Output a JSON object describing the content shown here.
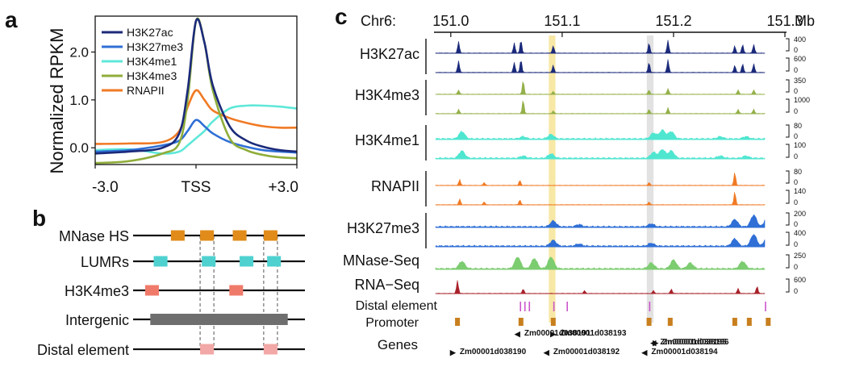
{
  "panels": {
    "a": {
      "label": "a",
      "chart_data": {
        "type": "line",
        "title": "",
        "xlabel": "",
        "ylabel": "Normalized RPKM",
        "x_tick_labels": [
          "-3.0",
          "TSS",
          "+3.0"
        ],
        "y_tick_labels": [
          "0.0",
          "1.0",
          "2.0"
        ],
        "xlim": [
          -3,
          3
        ],
        "ylim": [
          -0.35,
          2.75
        ],
        "x": [
          -3.0,
          -2.0,
          -1.0,
          -0.5,
          -0.25,
          0.0,
          0.25,
          0.5,
          1.0,
          1.5,
          2.0,
          2.5,
          3.0
        ],
        "series": [
          {
            "name": "H3K27ac",
            "color": "#1b2a7a",
            "values": [
              -0.12,
              -0.08,
              0.0,
              0.3,
              1.2,
              2.65,
              2.2,
              1.3,
              0.45,
              0.15,
              0.02,
              -0.05,
              -0.08
            ]
          },
          {
            "name": "H3K27me3",
            "color": "#2f6fd6",
            "values": [
              -0.08,
              -0.05,
              0.05,
              0.15,
              0.35,
              0.58,
              0.45,
              0.3,
              0.12,
              0.02,
              -0.05,
              -0.08,
              -0.1
            ]
          },
          {
            "name": "H3K4me1",
            "color": "#5fe8d8",
            "values": [
              -0.05,
              -0.03,
              -0.12,
              -0.08,
              0.05,
              0.2,
              0.35,
              0.55,
              0.82,
              0.88,
              0.88,
              0.86,
              0.82
            ]
          },
          {
            "name": "H3K4me3",
            "color": "#8fad3a",
            "values": [
              -0.32,
              -0.28,
              -0.12,
              0.1,
              1.0,
              2.65,
              2.2,
              1.2,
              0.2,
              -0.05,
              -0.15,
              -0.2,
              -0.22
            ]
          },
          {
            "name": "RNAPII",
            "color": "#f07a24",
            "values": [
              0.08,
              0.09,
              0.12,
              0.35,
              0.85,
              1.2,
              1.0,
              0.78,
              0.62,
              0.52,
              0.45,
              0.42,
              0.42
            ]
          }
        ]
      }
    },
    "b": {
      "label": "b",
      "rows": [
        {
          "label": "MNase HS",
          "color": "#e08b1a",
          "blocks": [
            [
              0.22,
              0.3
            ],
            [
              0.39,
              0.47
            ],
            [
              0.58,
              0.66
            ],
            [
              0.76,
              0.84
            ]
          ]
        },
        {
          "label": "LUMRs",
          "color": "#4fd1d0",
          "blocks": [
            [
              0.12,
              0.2
            ],
            [
              0.4,
              0.48
            ],
            [
              0.62,
              0.7
            ],
            [
              0.78,
              0.86
            ]
          ]
        },
        {
          "label": "H3K4me3",
          "color": "#f07a6a",
          "blocks": [
            [
              0.07,
              0.15
            ],
            [
              0.56,
              0.64
            ]
          ]
        },
        {
          "label": "Intergenic",
          "color": "#6e6e6e",
          "blocks": [
            [
              0.1,
              0.9
            ]
          ]
        },
        {
          "label": "Distal element",
          "color": "#f2a8a6",
          "blocks": [
            [
              0.39,
              0.47
            ],
            [
              0.76,
              0.84
            ]
          ]
        }
      ],
      "guides": [
        0.39,
        0.47,
        0.76,
        0.84
      ]
    },
    "c": {
      "label": "c",
      "axis": {
        "chrom": "Chr6:",
        "ticks": [
          "151.0",
          "151.1",
          "151.2",
          "151.3"
        ],
        "unit": "Mb",
        "range": [
          150.99,
          151.3
        ],
        "tick_values": [
          151.0,
          151.1,
          151.2,
          151.3
        ]
      },
      "highlights": [
        {
          "from": 151.088,
          "to": 151.094,
          "color": "#f8e8a6"
        },
        {
          "from": 151.176,
          "to": 151.182,
          "color": "#e2e2e2"
        }
      ],
      "tracks": [
        {
          "label": "H3K27ac",
          "color": "#1b2a7a",
          "scales": [
            "400",
            "0",
            "600",
            "0"
          ],
          "peaks": [
            [
              151.007,
              0.8
            ],
            [
              151.057,
              0.7
            ],
            [
              151.063,
              0.9
            ],
            [
              151.092,
              0.5
            ],
            [
              151.178,
              0.7
            ],
            [
              151.195,
              0.9
            ],
            [
              151.255,
              0.5
            ],
            [
              151.262,
              0.6
            ],
            [
              151.272,
              0.6
            ]
          ]
        },
        {
          "label": "H3K4me3",
          "color": "#94b04a",
          "scales": [
            "350",
            "0",
            "1000",
            "0"
          ],
          "peaks": [
            [
              151.007,
              0.3
            ],
            [
              151.065,
              0.95
            ],
            [
              151.092,
              0.2
            ],
            [
              151.178,
              0.3
            ],
            [
              151.195,
              0.4
            ],
            [
              151.258,
              0.3
            ],
            [
              151.272,
              0.3
            ]
          ]
        },
        {
          "label": "H3K4me1",
          "color": "#4fe6d0",
          "scales": [
            "80",
            "0",
            "100",
            "0"
          ],
          "peaks": [
            [
              151.01,
              0.5
            ],
            [
              151.065,
              0.15
            ],
            [
              151.09,
              0.3
            ],
            [
              151.182,
              0.4
            ],
            [
              151.19,
              0.6
            ],
            [
              151.198,
              0.5
            ],
            [
              151.242,
              0.15
            ],
            [
              151.265,
              0.15
            ]
          ]
        },
        {
          "label": "RNAPII",
          "color": "#f07a24",
          "scales": [
            "80",
            "0",
            "140",
            "0"
          ],
          "peaks": [
            [
              151.008,
              0.4
            ],
            [
              151.03,
              0.2
            ],
            [
              151.062,
              0.35
            ],
            [
              151.178,
              0.2
            ],
            [
              151.255,
              0.9
            ]
          ]
        },
        {
          "label": "H3K27me3",
          "color": "#2f6fd6",
          "scales": [
            "200",
            "0",
            "400",
            "0"
          ],
          "peaks": [
            [
              151.092,
              0.4
            ],
            [
              151.115,
              0.15
            ],
            [
              151.18,
              0.2
            ],
            [
              151.255,
              0.5
            ],
            [
              151.272,
              0.8
            ],
            [
              151.285,
              0.95
            ]
          ]
        }
      ],
      "single_tracks": [
        {
          "label": "MNase-Seq",
          "color": "#7ccc70",
          "scales": [
            "250",
            "0"
          ],
          "peaks": [
            [
              151.01,
              0.5
            ],
            [
              151.06,
              0.8
            ],
            [
              151.075,
              0.7
            ],
            [
              151.09,
              0.8
            ],
            [
              151.18,
              0.4
            ],
            [
              151.2,
              0.6
            ],
            [
              151.215,
              0.4
            ],
            [
              151.262,
              0.5
            ]
          ]
        },
        {
          "label": "RNA−Seq",
          "color": "#a8222a",
          "scales": [
            "600",
            "0"
          ],
          "peaks": [
            [
              151.006,
              0.9
            ],
            [
              151.065,
              0.3
            ],
            [
              151.12,
              0.2
            ],
            [
              151.182,
              0.2
            ],
            [
              151.198,
              0.3
            ],
            [
              151.258,
              0.35
            ],
            [
              151.275,
              0.5
            ]
          ]
        }
      ],
      "distal_element": {
        "label": "Distal element",
        "color": "#cc55cc",
        "positions": [
          151.062,
          151.066,
          151.07,
          151.092,
          151.104,
          151.178,
          151.282
        ]
      },
      "promoter": {
        "label": "Promoter",
        "color": "#c87f1e",
        "positions": [
          151.006,
          151.063,
          151.092,
          151.178,
          151.197,
          151.255,
          151.268,
          151.285
        ]
      },
      "genes": {
        "label": "Genes",
        "items": [
          {
            "name": "Zm00001d038193",
            "start": 151.098,
            "strand": ">"
          },
          {
            "name": "Zm00001d038195",
            "start": 151.188,
            "strand": "<"
          },
          {
            "name": "Zm00001d038191",
            "start": 151.066,
            "strand": "<"
          },
          {
            "name": "Zm00001d038196",
            "start": 151.19,
            "strand": ">"
          },
          {
            "name": "Zm00001d038190",
            "start": 151.008,
            "strand": ">"
          },
          {
            "name": "Zm00001d038192",
            "start": 151.092,
            "strand": "<"
          },
          {
            "name": "Zm00001d038194",
            "start": 151.18,
            "strand": "<"
          }
        ]
      }
    }
  }
}
